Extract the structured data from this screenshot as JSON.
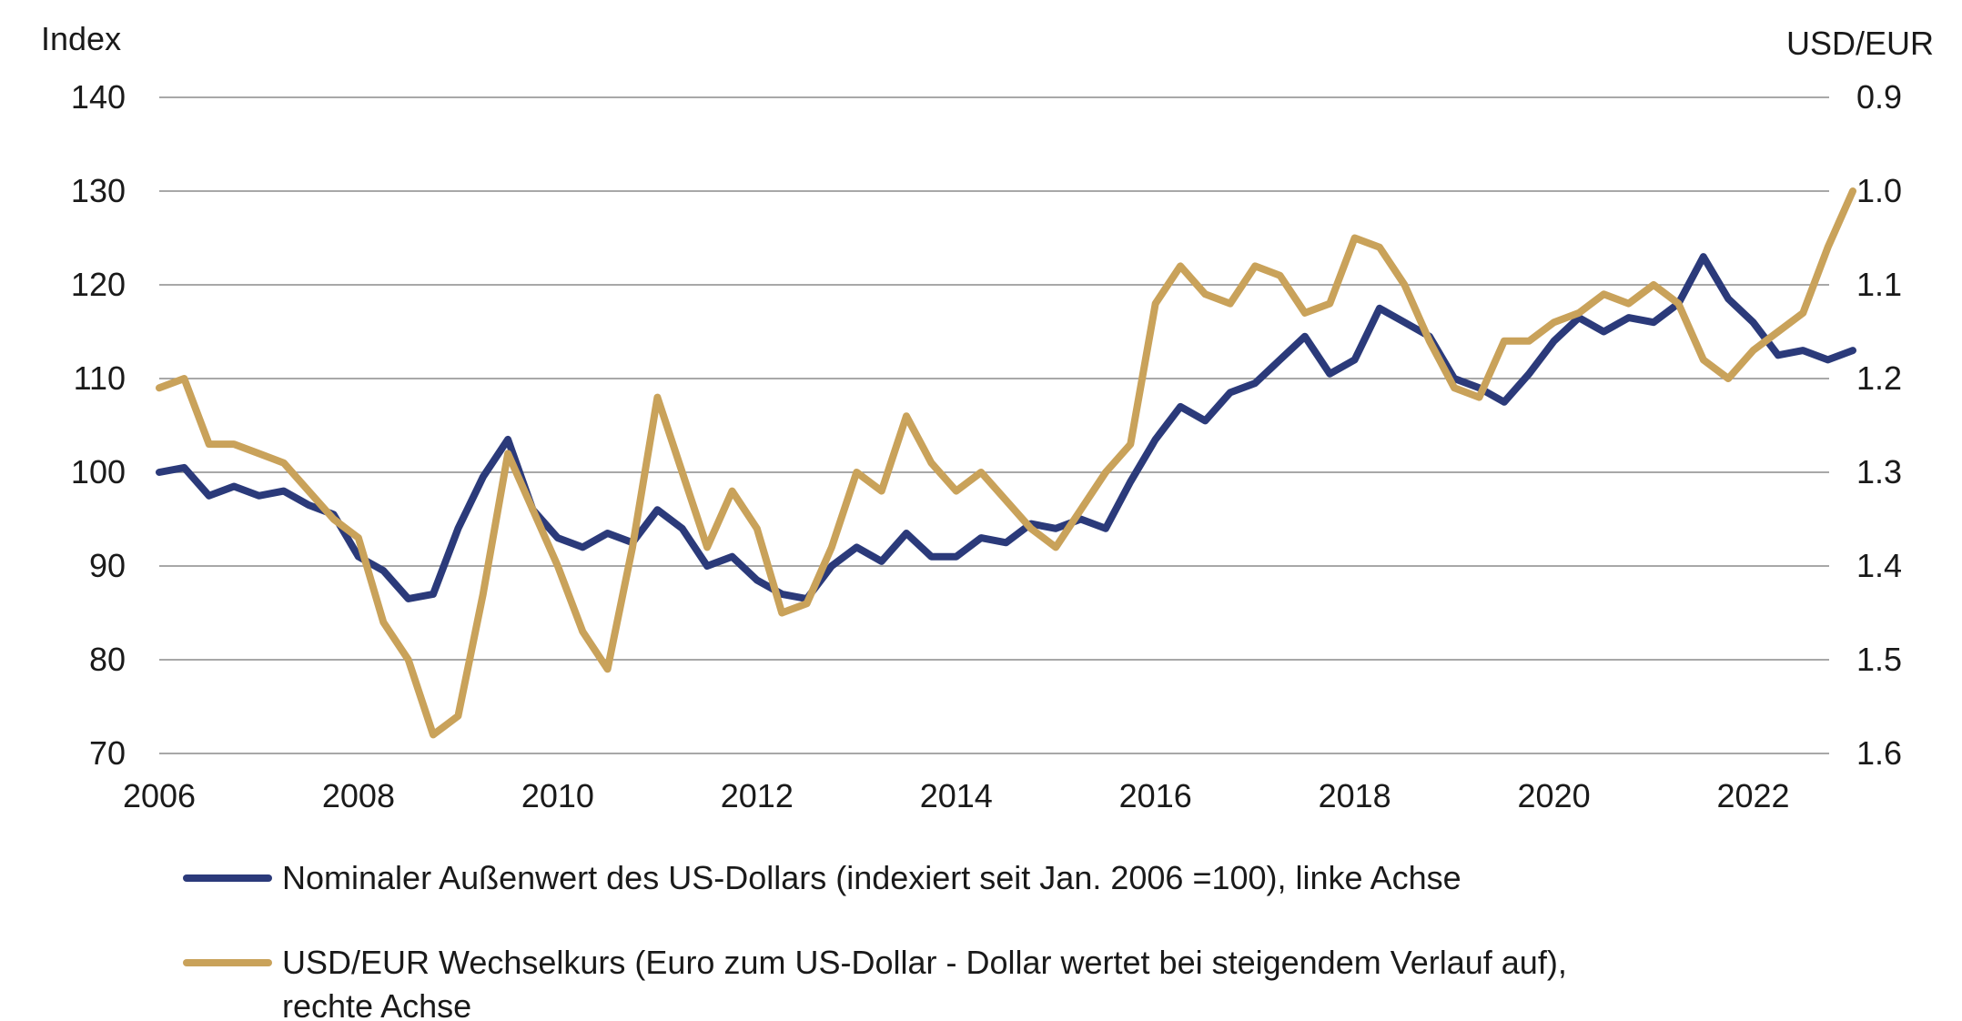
{
  "chart_data": {
    "type": "line",
    "left_axis": {
      "label": "Index",
      "ylim": [
        70,
        140
      ],
      "ticks": [
        70,
        80,
        90,
        100,
        110,
        120,
        130,
        140
      ],
      "tick_labels": [
        "70",
        "80",
        "90",
        "100",
        "110",
        "120",
        "130",
        "140"
      ]
    },
    "right_axis": {
      "label": "USD/EUR",
      "ylim": [
        0.9,
        1.6
      ],
      "inverted": true,
      "ticks": [
        0.9,
        1.0,
        1.1,
        1.2,
        1.3,
        1.4,
        1.5,
        1.6
      ],
      "tick_labels": [
        "0.9",
        "1.0",
        "1.1",
        "1.2",
        "1.3",
        "1.4",
        "1.5",
        "1.6"
      ]
    },
    "x_axis": {
      "xlim": [
        2006,
        2023
      ],
      "ticks": [
        2006,
        2008,
        2010,
        2012,
        2014,
        2016,
        2018,
        2020,
        2022
      ],
      "tick_labels": [
        "2006",
        "2008",
        "2010",
        "2012",
        "2014",
        "2016",
        "2018",
        "2020",
        "2022"
      ]
    },
    "grid": "horizontal",
    "legend_position": "bottom",
    "series": [
      {
        "name": "Nominaler Außenwert des US-Dollars (indexiert seit Jan. 2006 =100), linke Achse",
        "axis": "left",
        "color": "#2b3a7a",
        "points": [
          [
            2006.0,
            100.0
          ],
          [
            2006.25,
            100.5
          ],
          [
            2006.5,
            97.5
          ],
          [
            2006.75,
            98.5
          ],
          [
            2007.0,
            97.5
          ],
          [
            2007.25,
            98.0
          ],
          [
            2007.5,
            96.5
          ],
          [
            2007.75,
            95.5
          ],
          [
            2008.0,
            91.0
          ],
          [
            2008.25,
            89.5
          ],
          [
            2008.5,
            86.5
          ],
          [
            2008.75,
            87.0
          ],
          [
            2009.0,
            94.0
          ],
          [
            2009.25,
            99.5
          ],
          [
            2009.5,
            103.5
          ],
          [
            2009.75,
            96.0
          ],
          [
            2010.0,
            93.0
          ],
          [
            2010.25,
            92.0
          ],
          [
            2010.5,
            93.5
          ],
          [
            2010.75,
            92.5
          ],
          [
            2011.0,
            96.0
          ],
          [
            2011.25,
            94.0
          ],
          [
            2011.5,
            90.0
          ],
          [
            2011.75,
            91.0
          ],
          [
            2012.0,
            88.5
          ],
          [
            2012.25,
            87.0
          ],
          [
            2012.5,
            86.5
          ],
          [
            2012.75,
            90.0
          ],
          [
            2013.0,
            92.0
          ],
          [
            2013.25,
            90.5
          ],
          [
            2013.5,
            93.5
          ],
          [
            2013.75,
            91.0
          ],
          [
            2014.0,
            91.0
          ],
          [
            2014.25,
            93.0
          ],
          [
            2014.5,
            92.5
          ],
          [
            2014.75,
            94.5
          ],
          [
            2015.0,
            94.0
          ],
          [
            2015.25,
            95.0
          ],
          [
            2015.5,
            94.0
          ],
          [
            2015.75,
            99.0
          ],
          [
            2016.0,
            103.5
          ],
          [
            2016.25,
            107.0
          ],
          [
            2016.5,
            105.5
          ],
          [
            2016.75,
            108.5
          ],
          [
            2017.0,
            109.5
          ],
          [
            2017.25,
            112.0
          ],
          [
            2017.5,
            114.5
          ],
          [
            2017.75,
            110.5
          ],
          [
            2018.0,
            112.0
          ],
          [
            2018.25,
            117.5
          ],
          [
            2018.5,
            116.0
          ],
          [
            2018.75,
            114.5
          ],
          [
            2019.0,
            110.0
          ],
          [
            2019.25,
            109.0
          ],
          [
            2019.5,
            107.5
          ],
          [
            2019.75,
            110.5
          ],
          [
            2020.0,
            114.0
          ],
          [
            2020.25,
            116.5
          ],
          [
            2020.5,
            115.0
          ],
          [
            2020.75,
            116.5
          ],
          [
            2021.0,
            116.0
          ],
          [
            2021.25,
            118.0
          ],
          [
            2021.5,
            123.0
          ],
          [
            2021.75,
            118.5
          ],
          [
            2022.0,
            116.0
          ],
          [
            2022.25,
            112.5
          ],
          [
            2022.5,
            113.0
          ],
          [
            2022.75,
            112.0
          ],
          [
            2023.0,
            113.0
          ]
        ]
      },
      {
        "name": "USD/EUR Wechselkurs (Euro zum US-Dollar - Dollar wertet bei steigendem Verlauf auf), rechte Achse",
        "axis": "right",
        "color": "#c9a25a",
        "points": [
          [
            2006.0,
            1.21
          ],
          [
            2006.25,
            1.2
          ],
          [
            2006.5,
            1.27
          ],
          [
            2006.75,
            1.27
          ],
          [
            2007.0,
            1.28
          ],
          [
            2007.25,
            1.29
          ],
          [
            2007.5,
            1.32
          ],
          [
            2007.75,
            1.35
          ],
          [
            2008.0,
            1.37
          ],
          [
            2008.25,
            1.46
          ],
          [
            2008.5,
            1.5
          ],
          [
            2008.75,
            1.58
          ],
          [
            2009.0,
            1.56
          ],
          [
            2009.25,
            1.43
          ],
          [
            2009.5,
            1.28
          ],
          [
            2009.75,
            1.34
          ],
          [
            2010.0,
            1.4
          ],
          [
            2010.25,
            1.47
          ],
          [
            2010.5,
            1.51
          ],
          [
            2010.75,
            1.38
          ],
          [
            2011.0,
            1.22
          ],
          [
            2011.25,
            1.3
          ],
          [
            2011.5,
            1.38
          ],
          [
            2011.75,
            1.32
          ],
          [
            2012.0,
            1.36
          ],
          [
            2012.25,
            1.45
          ],
          [
            2012.5,
            1.44
          ],
          [
            2012.75,
            1.38
          ],
          [
            2013.0,
            1.3
          ],
          [
            2013.25,
            1.32
          ],
          [
            2013.5,
            1.24
          ],
          [
            2013.75,
            1.29
          ],
          [
            2014.0,
            1.32
          ],
          [
            2014.25,
            1.3
          ],
          [
            2014.5,
            1.33
          ],
          [
            2014.75,
            1.36
          ],
          [
            2015.0,
            1.38
          ],
          [
            2015.25,
            1.34
          ],
          [
            2015.5,
            1.3
          ],
          [
            2015.75,
            1.27
          ],
          [
            2016.0,
            1.12
          ],
          [
            2016.25,
            1.08
          ],
          [
            2016.5,
            1.11
          ],
          [
            2016.75,
            1.12
          ],
          [
            2017.0,
            1.08
          ],
          [
            2017.25,
            1.09
          ],
          [
            2017.5,
            1.13
          ],
          [
            2017.75,
            1.12
          ],
          [
            2018.0,
            1.05
          ],
          [
            2018.25,
            1.06
          ],
          [
            2018.5,
            1.1
          ],
          [
            2018.75,
            1.16
          ],
          [
            2019.0,
            1.21
          ],
          [
            2019.25,
            1.22
          ],
          [
            2019.5,
            1.16
          ],
          [
            2019.75,
            1.16
          ],
          [
            2020.0,
            1.14
          ],
          [
            2020.25,
            1.13
          ],
          [
            2020.5,
            1.11
          ],
          [
            2020.75,
            1.12
          ],
          [
            2021.0,
            1.1
          ],
          [
            2021.25,
            1.12
          ],
          [
            2021.5,
            1.18
          ],
          [
            2021.75,
            1.2
          ],
          [
            2022.0,
            1.17
          ],
          [
            2022.25,
            1.15
          ],
          [
            2022.5,
            1.13
          ],
          [
            2022.75,
            1.06
          ],
          [
            2023.0,
            1.0
          ]
        ]
      }
    ]
  }
}
